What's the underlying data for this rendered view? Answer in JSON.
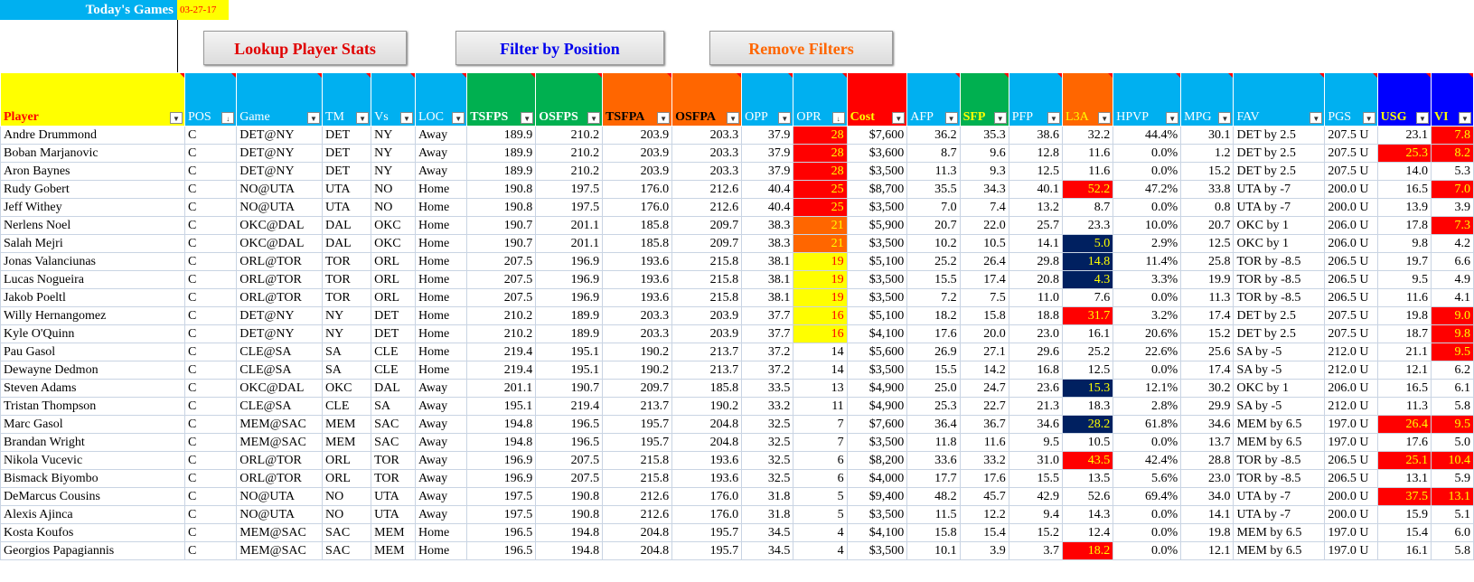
{
  "header": {
    "title": "Today's Games",
    "date": "03-27-17"
  },
  "buttons": {
    "lookup": {
      "label": "Lookup Player Stats",
      "color": "#e00000"
    },
    "filter": {
      "label": "Filter by Position",
      "color": "#0000ee"
    },
    "remove": {
      "label": "Remove Filters",
      "color": "#ff6600"
    }
  },
  "colors": {
    "red": "#ff0000",
    "orange": "#ff6600",
    "yellow": "#ffff00",
    "navy": "#002060",
    "sky": "#00b0f0",
    "green": "#00b050",
    "blue": "#0000ff"
  },
  "columns": [
    {
      "label": "Player",
      "bg": "#ffff00",
      "fg": "#ff0000",
      "bold": true
    },
    {
      "label": "POS",
      "bg": "#00b0f0",
      "fg": "#ffffff",
      "bold": false,
      "sort": true
    },
    {
      "label": "Game",
      "bg": "#00b0f0",
      "fg": "#ffffff",
      "bold": false
    },
    {
      "label": "TM",
      "bg": "#00b0f0",
      "fg": "#ffffff",
      "bold": false
    },
    {
      "label": "Vs",
      "bg": "#00b0f0",
      "fg": "#ffffff",
      "bold": false
    },
    {
      "label": "LOC",
      "bg": "#00b0f0",
      "fg": "#ffffff",
      "bold": false
    },
    {
      "label": "TSFPS",
      "bg": "#00b050",
      "fg": "#ffffff",
      "bold": true
    },
    {
      "label": "OSFPS",
      "bg": "#00b050",
      "fg": "#ffffff",
      "bold": true
    },
    {
      "label": "TSFPA",
      "bg": "#ff6600",
      "fg": "#000000",
      "bold": true
    },
    {
      "label": "OSFPA",
      "bg": "#ff6600",
      "fg": "#000000",
      "bold": true
    },
    {
      "label": "OPP",
      "bg": "#00b0f0",
      "fg": "#ffffff",
      "bold": false
    },
    {
      "label": "OPR",
      "bg": "#00b0f0",
      "fg": "#ffffff",
      "bold": false,
      "sort": true
    },
    {
      "label": "Cost",
      "bg": "#ff0000",
      "fg": "#ffff00",
      "bold": true
    },
    {
      "label": "AFP",
      "bg": "#00b0f0",
      "fg": "#ffffff",
      "bold": false
    },
    {
      "label": "SFP",
      "bg": "#00b050",
      "fg": "#ffff00",
      "bold": true
    },
    {
      "label": "PFP",
      "bg": "#00b0f0",
      "fg": "#ffffff",
      "bold": false
    },
    {
      "label": "L3A",
      "bg": "#ff6600",
      "fg": "#ffff00",
      "bold": false
    },
    {
      "label": "HPVP",
      "bg": "#00b0f0",
      "fg": "#ffffff",
      "bold": false
    },
    {
      "label": "MPG",
      "bg": "#00b0f0",
      "fg": "#ffffff",
      "bold": false
    },
    {
      "label": "FAV",
      "bg": "#00b0f0",
      "fg": "#ffffff",
      "bold": false
    },
    {
      "label": "PGS",
      "bg": "#00b0f0",
      "fg": "#ffffff",
      "bold": false
    },
    {
      "label": "USG",
      "bg": "#0000ff",
      "fg": "#ffff00",
      "bold": true
    },
    {
      "label": "VI",
      "bg": "#0000ff",
      "fg": "#ffff00",
      "bold": true
    }
  ],
  "rows": [
    [
      "Andre Drummond",
      "C",
      "DET@NY",
      "DET",
      "NY",
      "Away",
      "189.9",
      "210.2",
      "203.9",
      "203.3",
      "37.9",
      "28",
      "$7,600",
      "36.2",
      "35.3",
      "38.6",
      "32.2",
      "44.4%",
      "30.1",
      "DET by 2.5",
      "207.5 U",
      "23.1",
      "7.8"
    ],
    [
      "Boban Marjanovic",
      "C",
      "DET@NY",
      "DET",
      "NY",
      "Away",
      "189.9",
      "210.2",
      "203.9",
      "203.3",
      "37.9",
      "28",
      "$3,600",
      "8.7",
      "9.6",
      "12.8",
      "11.6",
      "0.0%",
      "1.2",
      "DET by 2.5",
      "207.5 U",
      "25.3",
      "8.2"
    ],
    [
      "Aron Baynes",
      "C",
      "DET@NY",
      "DET",
      "NY",
      "Away",
      "189.9",
      "210.2",
      "203.9",
      "203.3",
      "37.9",
      "28",
      "$3,500",
      "11.3",
      "9.3",
      "12.5",
      "11.6",
      "0.0%",
      "15.2",
      "DET by 2.5",
      "207.5 U",
      "14.0",
      "5.3"
    ],
    [
      "Rudy Gobert",
      "C",
      "NO@UTA",
      "UTA",
      "NO",
      "Home",
      "190.8",
      "197.5",
      "176.0",
      "212.6",
      "40.4",
      "25",
      "$8,700",
      "35.5",
      "34.3",
      "40.1",
      "52.2",
      "47.2%",
      "33.8",
      "UTA by -7",
      "200.0 U",
      "16.5",
      "7.0"
    ],
    [
      "Jeff Withey",
      "C",
      "NO@UTA",
      "UTA",
      "NO",
      "Home",
      "190.8",
      "197.5",
      "176.0",
      "212.6",
      "40.4",
      "25",
      "$3,500",
      "7.0",
      "7.4",
      "13.2",
      "8.7",
      "0.0%",
      "0.8",
      "UTA by -7",
      "200.0 U",
      "13.9",
      "3.9"
    ],
    [
      "Nerlens Noel",
      "C",
      "OKC@DAL",
      "DAL",
      "OKC",
      "Home",
      "190.7",
      "201.1",
      "185.8",
      "209.7",
      "38.3",
      "21",
      "$5,900",
      "20.7",
      "22.0",
      "25.7",
      "23.3",
      "10.0%",
      "20.7",
      "OKC by 1",
      "206.0 U",
      "17.8",
      "7.3"
    ],
    [
      "Salah Mejri",
      "C",
      "OKC@DAL",
      "DAL",
      "OKC",
      "Home",
      "190.7",
      "201.1",
      "185.8",
      "209.7",
      "38.3",
      "21",
      "$3,500",
      "10.2",
      "10.5",
      "14.1",
      "5.0",
      "2.9%",
      "12.5",
      "OKC by 1",
      "206.0 U",
      "9.8",
      "4.2"
    ],
    [
      "Jonas Valanciunas",
      "C",
      "ORL@TOR",
      "TOR",
      "ORL",
      "Home",
      "207.5",
      "196.9",
      "193.6",
      "215.8",
      "38.1",
      "19",
      "$5,100",
      "25.2",
      "26.4",
      "29.8",
      "14.8",
      "11.4%",
      "25.8",
      "TOR by -8.5",
      "206.5 U",
      "19.7",
      "6.6"
    ],
    [
      "Lucas Nogueira",
      "C",
      "ORL@TOR",
      "TOR",
      "ORL",
      "Home",
      "207.5",
      "196.9",
      "193.6",
      "215.8",
      "38.1",
      "19",
      "$3,500",
      "15.5",
      "17.4",
      "20.8",
      "4.3",
      "3.3%",
      "19.9",
      "TOR by -8.5",
      "206.5 U",
      "9.5",
      "4.9"
    ],
    [
      "Jakob Poeltl",
      "C",
      "ORL@TOR",
      "TOR",
      "ORL",
      "Home",
      "207.5",
      "196.9",
      "193.6",
      "215.8",
      "38.1",
      "19",
      "$3,500",
      "7.2",
      "7.5",
      "11.0",
      "7.6",
      "0.0%",
      "11.3",
      "TOR by -8.5",
      "206.5 U",
      "11.6",
      "4.1"
    ],
    [
      "Willy Hernangomez",
      "C",
      "DET@NY",
      "NY",
      "DET",
      "Home",
      "210.2",
      "189.9",
      "203.3",
      "203.9",
      "37.7",
      "16",
      "$5,100",
      "18.2",
      "15.8",
      "18.8",
      "31.7",
      "3.2%",
      "17.4",
      "DET by 2.5",
      "207.5 U",
      "19.8",
      "9.0"
    ],
    [
      "Kyle O'Quinn",
      "C",
      "DET@NY",
      "NY",
      "DET",
      "Home",
      "210.2",
      "189.9",
      "203.3",
      "203.9",
      "37.7",
      "16",
      "$4,100",
      "17.6",
      "20.0",
      "23.0",
      "16.1",
      "20.6%",
      "15.2",
      "DET by 2.5",
      "207.5 U",
      "18.7",
      "9.8"
    ],
    [
      "Pau Gasol",
      "C",
      "CLE@SA",
      "SA",
      "CLE",
      "Home",
      "219.4",
      "195.1",
      "190.2",
      "213.7",
      "37.2",
      "14",
      "$5,600",
      "26.9",
      "27.1",
      "29.6",
      "25.2",
      "22.6%",
      "25.6",
      "SA by -5",
      "212.0 U",
      "21.1",
      "9.5"
    ],
    [
      "Dewayne Dedmon",
      "C",
      "CLE@SA",
      "SA",
      "CLE",
      "Home",
      "219.4",
      "195.1",
      "190.2",
      "213.7",
      "37.2",
      "14",
      "$3,500",
      "15.5",
      "14.2",
      "16.8",
      "12.5",
      "0.0%",
      "17.4",
      "SA by -5",
      "212.0 U",
      "12.1",
      "6.2"
    ],
    [
      "Steven Adams",
      "C",
      "OKC@DAL",
      "OKC",
      "DAL",
      "Away",
      "201.1",
      "190.7",
      "209.7",
      "185.8",
      "33.5",
      "13",
      "$4,900",
      "25.0",
      "24.7",
      "23.6",
      "15.3",
      "12.1%",
      "30.2",
      "OKC by 1",
      "206.0 U",
      "16.5",
      "6.1"
    ],
    [
      "Tristan Thompson",
      "C",
      "CLE@SA",
      "CLE",
      "SA",
      "Away",
      "195.1",
      "219.4",
      "213.7",
      "190.2",
      "33.2",
      "11",
      "$4,900",
      "25.3",
      "22.7",
      "21.3",
      "18.3",
      "2.8%",
      "29.9",
      "SA by -5",
      "212.0 U",
      "11.3",
      "5.8"
    ],
    [
      "Marc Gasol",
      "C",
      "MEM@SAC",
      "MEM",
      "SAC",
      "Away",
      "194.8",
      "196.5",
      "195.7",
      "204.8",
      "32.5",
      "7",
      "$7,600",
      "36.4",
      "36.7",
      "34.6",
      "28.2",
      "61.8%",
      "34.6",
      "MEM by 6.5",
      "197.0 U",
      "26.4",
      "9.5"
    ],
    [
      "Brandan Wright",
      "C",
      "MEM@SAC",
      "MEM",
      "SAC",
      "Away",
      "194.8",
      "196.5",
      "195.7",
      "204.8",
      "32.5",
      "7",
      "$3,500",
      "11.8",
      "11.6",
      "9.5",
      "10.5",
      "0.0%",
      "13.7",
      "MEM by 6.5",
      "197.0 U",
      "17.6",
      "5.0"
    ],
    [
      "Nikola Vucevic",
      "C",
      "ORL@TOR",
      "ORL",
      "TOR",
      "Away",
      "196.9",
      "207.5",
      "215.8",
      "193.6",
      "32.5",
      "6",
      "$8,200",
      "33.6",
      "33.2",
      "31.0",
      "43.5",
      "42.4%",
      "28.8",
      "TOR by -8.5",
      "206.5 U",
      "25.1",
      "10.4"
    ],
    [
      "Bismack Biyombo",
      "C",
      "ORL@TOR",
      "ORL",
      "TOR",
      "Away",
      "196.9",
      "207.5",
      "215.8",
      "193.6",
      "32.5",
      "6",
      "$4,000",
      "17.7",
      "17.6",
      "15.5",
      "13.5",
      "5.6%",
      "23.0",
      "TOR by -8.5",
      "206.5 U",
      "13.1",
      "5.9"
    ],
    [
      "DeMarcus Cousins",
      "C",
      "NO@UTA",
      "NO",
      "UTA",
      "Away",
      "197.5",
      "190.8",
      "212.6",
      "176.0",
      "31.8",
      "5",
      "$9,400",
      "48.2",
      "45.7",
      "42.9",
      "52.6",
      "69.4%",
      "34.0",
      "UTA by -7",
      "200.0 U",
      "37.5",
      "13.1"
    ],
    [
      "Alexis Ajinca",
      "C",
      "NO@UTA",
      "NO",
      "UTA",
      "Away",
      "197.5",
      "190.8",
      "212.6",
      "176.0",
      "31.8",
      "5",
      "$3,500",
      "11.5",
      "12.2",
      "9.4",
      "14.3",
      "0.0%",
      "14.1",
      "UTA by -7",
      "200.0 U",
      "15.9",
      "5.1"
    ],
    [
      "Kosta Koufos",
      "C",
      "MEM@SAC",
      "SAC",
      "MEM",
      "Home",
      "196.5",
      "194.8",
      "204.8",
      "195.7",
      "34.5",
      "4",
      "$4,100",
      "15.8",
      "15.4",
      "15.2",
      "12.4",
      "0.0%",
      "19.8",
      "MEM by 6.5",
      "197.0 U",
      "15.4",
      "6.0"
    ],
    [
      "Georgios Papagiannis",
      "C",
      "MEM@SAC",
      "SAC",
      "MEM",
      "Home",
      "196.5",
      "194.8",
      "204.8",
      "195.7",
      "34.5",
      "4",
      "$3,500",
      "10.1",
      "3.9",
      "3.7",
      "18.2",
      "0.0%",
      "12.1",
      "MEM by 6.5",
      "197.0 U",
      "16.1",
      "5.8"
    ]
  ],
  "highlights": [
    {
      "row": 0,
      "col": 11,
      "style": "red"
    },
    {
      "row": 1,
      "col": 11,
      "style": "red"
    },
    {
      "row": 2,
      "col": 11,
      "style": "red"
    },
    {
      "row": 3,
      "col": 11,
      "style": "red"
    },
    {
      "row": 4,
      "col": 11,
      "style": "red"
    },
    {
      "row": 5,
      "col": 11,
      "style": "orange"
    },
    {
      "row": 6,
      "col": 11,
      "style": "orange"
    },
    {
      "row": 7,
      "col": 11,
      "style": "yellow"
    },
    {
      "row": 8,
      "col": 11,
      "style": "yellow"
    },
    {
      "row": 9,
      "col": 11,
      "style": "yellow"
    },
    {
      "row": 10,
      "col": 11,
      "style": "yellow"
    },
    {
      "row": 11,
      "col": 11,
      "style": "yellow"
    },
    {
      "row": 3,
      "col": 16,
      "style": "red"
    },
    {
      "row": 6,
      "col": 16,
      "style": "navy"
    },
    {
      "row": 7,
      "col": 16,
      "style": "navy"
    },
    {
      "row": 8,
      "col": 16,
      "style": "navy"
    },
    {
      "row": 10,
      "col": 16,
      "style": "red"
    },
    {
      "row": 14,
      "col": 16,
      "style": "navy"
    },
    {
      "row": 16,
      "col": 16,
      "style": "navy"
    },
    {
      "row": 18,
      "col": 16,
      "style": "red"
    },
    {
      "row": 23,
      "col": 16,
      "style": "red"
    },
    {
      "row": 1,
      "col": 21,
      "style": "red"
    },
    {
      "row": 16,
      "col": 21,
      "style": "red"
    },
    {
      "row": 18,
      "col": 21,
      "style": "red"
    },
    {
      "row": 20,
      "col": 21,
      "style": "red"
    },
    {
      "row": 0,
      "col": 22,
      "style": "red"
    },
    {
      "row": 1,
      "col": 22,
      "style": "red"
    },
    {
      "row": 3,
      "col": 22,
      "style": "red"
    },
    {
      "row": 5,
      "col": 22,
      "style": "red"
    },
    {
      "row": 10,
      "col": 22,
      "style": "red"
    },
    {
      "row": 11,
      "col": 22,
      "style": "red"
    },
    {
      "row": 12,
      "col": 22,
      "style": "red"
    },
    {
      "row": 16,
      "col": 22,
      "style": "red"
    },
    {
      "row": 18,
      "col": 22,
      "style": "red"
    },
    {
      "row": 20,
      "col": 22,
      "style": "red"
    }
  ]
}
